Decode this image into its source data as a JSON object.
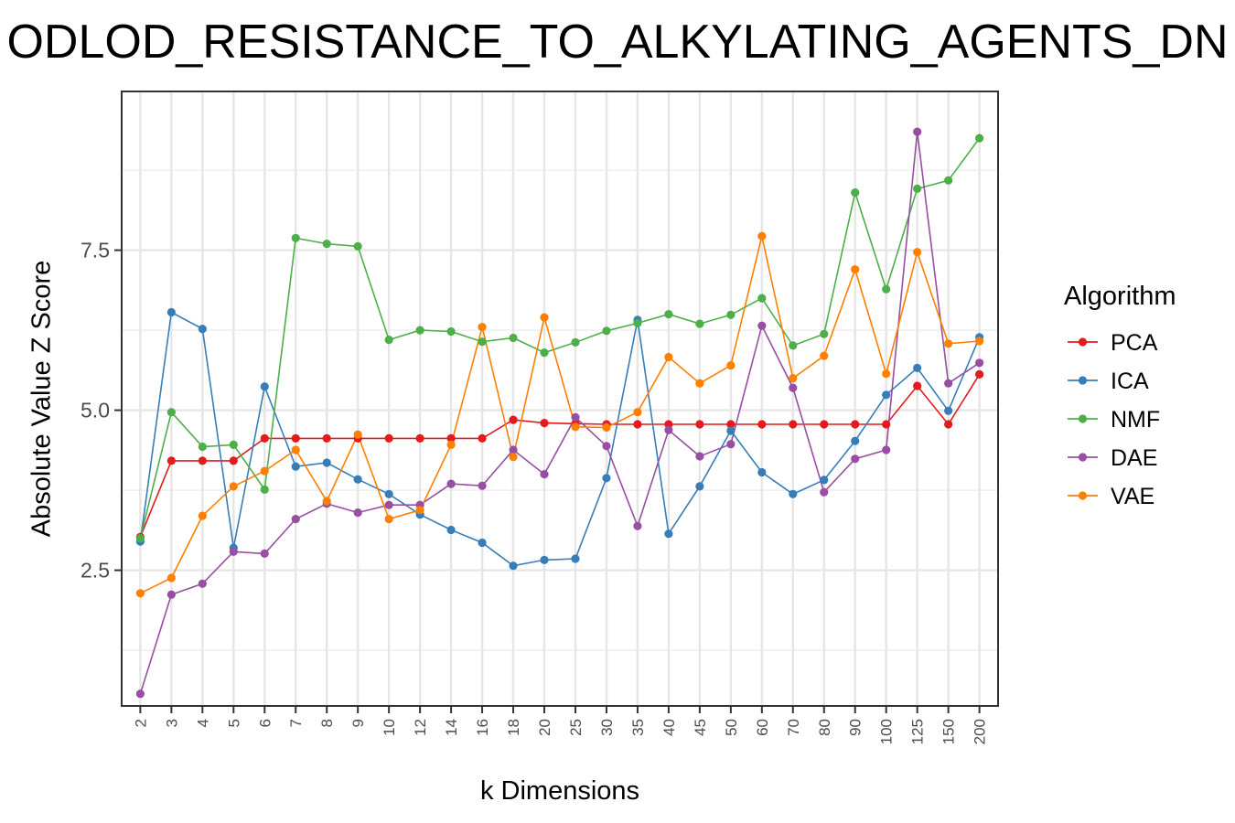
{
  "chart_data": {
    "type": "line",
    "title": "ODLOD_RESISTANCE_TO_ALKYLATING_AGENTS_DN",
    "xlabel": "k Dimensions",
    "ylabel": "Absolute Value Z Score",
    "categories": [
      "2",
      "3",
      "4",
      "5",
      "6",
      "7",
      "8",
      "9",
      "10",
      "12",
      "14",
      "16",
      "18",
      "20",
      "25",
      "30",
      "35",
      "40",
      "45",
      "50",
      "60",
      "70",
      "80",
      "90",
      "100",
      "125",
      "150",
      "200"
    ],
    "y_ticks": [
      2.5,
      5.0,
      7.5
    ],
    "y_tick_labels": [
      "2.5",
      "5.0",
      "7.5"
    ],
    "ylim": [
      0.38,
      9.98
    ],
    "grid": true,
    "legend_position": "right",
    "legend_title": "Algorithm",
    "series": [
      {
        "name": "PCA",
        "color": "#E41A1C",
        "values": [
          3.02,
          4.21,
          4.21,
          4.21,
          4.56,
          4.56,
          4.56,
          4.56,
          4.56,
          4.56,
          4.56,
          4.56,
          4.85,
          4.8,
          4.79,
          4.78,
          4.78,
          4.78,
          4.78,
          4.78,
          4.78,
          4.78,
          4.78,
          4.78,
          4.78,
          5.38,
          4.78,
          5.56
        ]
      },
      {
        "name": "ICA",
        "color": "#377EB8",
        "values": [
          2.95,
          6.53,
          6.27,
          2.85,
          5.37,
          4.12,
          4.18,
          3.92,
          3.69,
          3.37,
          3.13,
          2.93,
          2.57,
          2.66,
          2.68,
          3.94,
          6.41,
          3.07,
          3.81,
          4.68,
          4.03,
          3.69,
          3.91,
          4.52,
          5.24,
          5.66,
          4.99,
          6.14
        ]
      },
      {
        "name": "NMF",
        "color": "#4DAF4A",
        "values": [
          3.0,
          4.97,
          4.43,
          4.46,
          3.76,
          7.69,
          7.6,
          7.56,
          6.1,
          6.25,
          6.23,
          6.07,
          6.13,
          5.9,
          6.06,
          6.24,
          6.36,
          6.5,
          6.35,
          6.49,
          6.75,
          6.01,
          6.19,
          8.4,
          6.89,
          8.46,
          8.59,
          9.25
        ]
      },
      {
        "name": "DAE",
        "color": "#984EA3",
        "values": [
          0.57,
          2.12,
          2.29,
          2.79,
          2.76,
          3.3,
          3.54,
          3.4,
          3.52,
          3.52,
          3.85,
          3.82,
          4.38,
          4.0,
          4.89,
          4.44,
          3.19,
          4.69,
          4.28,
          4.47,
          6.32,
          5.35,
          3.72,
          4.24,
          4.38,
          9.35,
          5.42,
          5.74
        ]
      },
      {
        "name": "VAE",
        "color": "#FF7F00",
        "values": [
          2.14,
          2.38,
          3.35,
          3.81,
          4.05,
          4.38,
          3.58,
          4.62,
          3.3,
          3.44,
          4.46,
          6.3,
          4.27,
          6.45,
          4.74,
          4.73,
          4.97,
          5.83,
          5.42,
          5.7,
          7.72,
          5.5,
          5.85,
          7.2,
          5.57,
          7.47,
          6.04,
          6.08
        ]
      }
    ]
  }
}
